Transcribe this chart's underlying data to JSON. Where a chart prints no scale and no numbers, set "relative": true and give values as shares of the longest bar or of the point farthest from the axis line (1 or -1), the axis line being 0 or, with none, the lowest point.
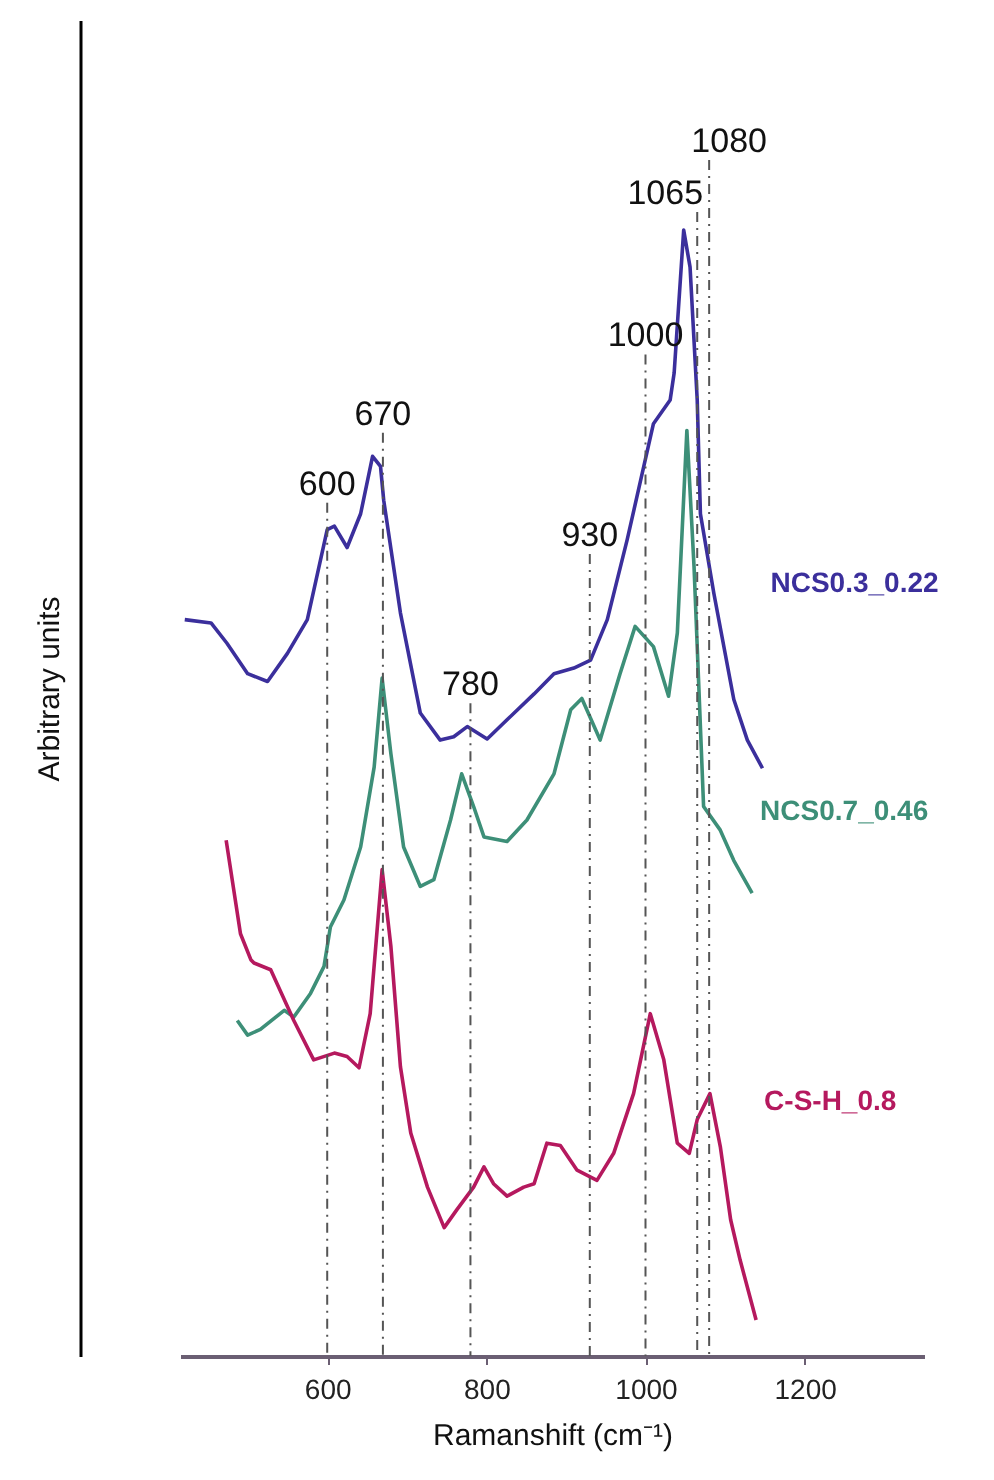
{
  "chart_data": {
    "type": "line",
    "relative": true,
    "xlabel": "Ramanshift (cm⁻¹)",
    "ylabel": "Arbitrary units",
    "xlim": [
      415,
      1350
    ],
    "xticks": [
      600,
      800,
      {
        "value": 1000,
        "label": "1000"
      },
      {
        "value": 1200,
        "label": "1200"
      }
    ],
    "series": [
      {
        "name": "NCS0.3_0.22",
        "color": "#3b2f9c",
        "x": [
          421,
          454,
          474,
          500,
          525,
          550,
          575,
          600,
          609,
          625,
          642,
          657,
          667,
          671,
          692,
          717,
          742,
          759,
          776,
          801,
          826,
          860,
          885,
          910,
          931,
          952,
          977,
          994,
          1010,
          1031,
          1036,
          1048,
          1056,
          1065,
          1069,
          1086,
          1111,
          1128,
          1147
        ],
        "values": [
          0.654,
          0.651,
          0.633,
          0.606,
          0.599,
          0.624,
          0.654,
          0.734,
          0.737,
          0.718,
          0.748,
          0.799,
          0.79,
          0.76,
          0.66,
          0.571,
          0.547,
          0.55,
          0.559,
          0.548,
          0.565,
          0.588,
          0.606,
          0.611,
          0.618,
          0.654,
          0.725,
          0.778,
          0.828,
          0.849,
          0.873,
          1.0,
          0.967,
          0.849,
          0.748,
          0.677,
          0.583,
          0.547,
          0.522
        ]
      },
      {
        "name": "NCS0.7_0.46",
        "color": "#3d8f78",
        "x": [
          487,
          500,
          516,
          546,
          558,
          579,
          596,
          604,
          621,
          642,
          659,
          669,
          680,
          696,
          717,
          734,
          755,
          769,
          784,
          797,
          826,
          851,
          885,
          906,
          920,
          943,
          968,
          987,
          1010,
          1029,
          1040,
          1052,
          1061,
          1073,
          1094,
          1111,
          1134
        ],
        "values": [
          0.298,
          0.285,
          0.29,
          0.307,
          0.301,
          0.322,
          0.346,
          0.381,
          0.405,
          0.452,
          0.523,
          0.602,
          0.535,
          0.452,
          0.417,
          0.423,
          0.476,
          0.517,
          0.488,
          0.461,
          0.457,
          0.476,
          0.517,
          0.574,
          0.584,
          0.547,
          0.606,
          0.648,
          0.63,
          0.586,
          0.642,
          0.822,
          0.701,
          0.488,
          0.467,
          0.44,
          0.411
        ]
      },
      {
        "name": "C-S-H_0.8",
        "color": "#b5195e",
        "x": [
          473,
          491,
          504,
          508,
          529,
          558,
          583,
          609,
          625,
          640,
          654,
          669,
          680,
          692,
          705,
          726,
          747,
          763,
          784,
          797,
          809,
          826,
          847,
          860,
          876,
          893,
          914,
          939,
          960,
          985,
          1006,
          1023,
          1040,
          1055,
          1065,
          1081,
          1094,
          1107,
          1119,
          1139
        ],
        "values": [
          0.458,
          0.375,
          0.352,
          0.349,
          0.343,
          0.298,
          0.263,
          0.269,
          0.266,
          0.256,
          0.304,
          0.432,
          0.364,
          0.257,
          0.198,
          0.15,
          0.114,
          0.13,
          0.15,
          0.168,
          0.153,
          0.142,
          0.15,
          0.153,
          0.189,
          0.187,
          0.165,
          0.156,
          0.18,
          0.233,
          0.304,
          0.263,
          0.189,
          0.18,
          0.21,
          0.233,
          0.186,
          0.121,
          0.085,
          0.032
        ]
      }
    ],
    "ref_lines": [
      {
        "axis": "x",
        "value": 600,
        "label": "600",
        "line_style": "dashed"
      },
      {
        "axis": "x",
        "value": 670,
        "label": "670",
        "line_style": "dashed"
      },
      {
        "axis": "x",
        "value": 780,
        "label": "780",
        "line_style": "dashed"
      },
      {
        "axis": "x",
        "value": 930,
        "label": "930",
        "line_style": "dashed"
      },
      {
        "axis": "x",
        "value": 1000,
        "label": "1000",
        "line_style": "dashed"
      },
      {
        "axis": "x",
        "value": 1065,
        "label": "1065",
        "line_style": "dashed"
      },
      {
        "axis": "x",
        "value": 1080,
        "label": "1080",
        "line_style": "dashed"
      }
    ]
  }
}
